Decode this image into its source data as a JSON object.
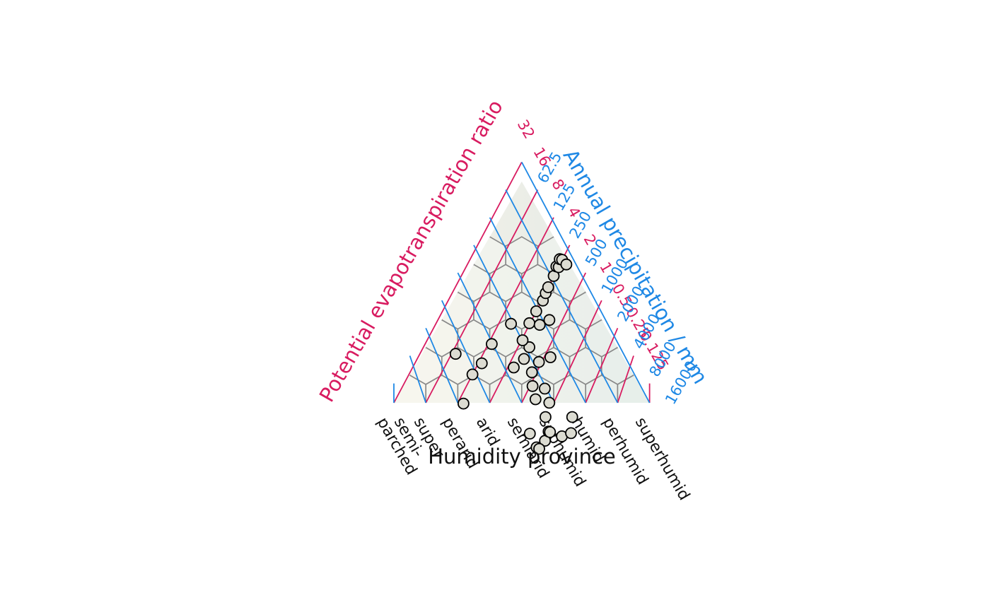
{
  "chart_data": {
    "type": "scatter",
    "subtype": "ternary holdridge life zone plot",
    "title": "",
    "xlabel": "Humidity province",
    "pet_axis": {
      "label": "Potential evapotranspiration ratio",
      "ticks": [
        "0.125",
        "0.25",
        "0.5",
        "1",
        "2",
        "4",
        "8",
        "16",
        "32"
      ]
    },
    "prec_axis": {
      "label": "Annual precipitation / mm",
      "ticks": [
        "62.5",
        "125",
        "250",
        "500",
        "1000",
        "2000",
        "4000",
        "8000",
        "16000"
      ]
    },
    "humidity_provinces": [
      "superhumid",
      "perhumid",
      "humid",
      "subhumid",
      "semiarid",
      "arid",
      "perarid",
      "superarid",
      "semi-parched"
    ],
    "province_labels_shown": [
      "parched",
      "semi-",
      "super",
      "perarid",
      "arid",
      "semiarid",
      "subhumid",
      "humid",
      "perhumid",
      "superhumid"
    ],
    "colors": {
      "pet": "#D81B60",
      "prec": "#1E88E5",
      "text": "#000000",
      "hex_border": "#888888",
      "point_fill": "#dcdcd2",
      "point_stroke": "#000000"
    },
    "points": [
      {
        "pet": 0.75,
        "prec": 1030
      },
      {
        "pet": 0.83,
        "prec": 790
      },
      {
        "pet": 0.77,
        "prec": 820
      },
      {
        "pet": 0.55,
        "prec": 1570
      },
      {
        "pet": 0.47,
        "prec": 1990
      },
      {
        "pet": 1.14,
        "prec": 810
      },
      {
        "pet": 0.78,
        "prec": 1250
      },
      {
        "pet": 0.56,
        "prec": 2500
      },
      {
        "pet": 0.75,
        "prec": 1280
      },
      {
        "pet": 1.0,
        "prec": 1400
      },
      {
        "pet": 1.55,
        "prec": 1410
      },
      {
        "pet": 1.1,
        "prec": 1820
      },
      {
        "pet": 1.45,
        "prec": 1970
      },
      {
        "pet": 1.95,
        "prec": 1560
      },
      {
        "pet": 2.35,
        "prec": 1830
      },
      {
        "pet": 2.3,
        "prec": 2420
      },
      {
        "pet": 1.9,
        "prec": 3300
      },
      {
        "pet": 3.7,
        "prec": 1310
      },
      {
        "pet": 3.3,
        "prec": 1820
      },
      {
        "pet": 3.4,
        "prec": 2370
      },
      {
        "pet": 4.3,
        "prec": 2230
      },
      {
        "pet": 4.6,
        "prec": 3200
      },
      {
        "pet": 3.6,
        "prec": 3920
      },
      {
        "pet": 3.1,
        "prec": 5140
      },
      {
        "pet": 4.6,
        "prec": 4310
      },
      {
        "pet": 4.55,
        "prec": 5700
      },
      {
        "pet": 4.7,
        "prec": 6650
      },
      {
        "pet": 4.8,
        "prec": 7550
      },
      {
        "pet": 4.9,
        "prec": 9800
      },
      {
        "pet": 5.2,
        "prec": 11700
      },
      {
        "pet": 4.9,
        "prec": 12200
      },
      {
        "pet": 5.3,
        "prec": 13800
      },
      {
        "pet": 5.0,
        "prec": 14400
      },
      {
        "pet": 4.3,
        "prec": 14900
      },
      {
        "pet": 8.0,
        "prec": 1090
      },
      {
        "pet": 7.8,
        "prec": 690
      },
      {
        "pet": 8.3,
        "prec": 490
      },
      {
        "pet": 7.0,
        "prec": 280
      },
      {
        "pet": 6.8,
        "prec": 2130
      },
      {
        "pet": 15.5,
        "prec": 440
      }
    ]
  }
}
